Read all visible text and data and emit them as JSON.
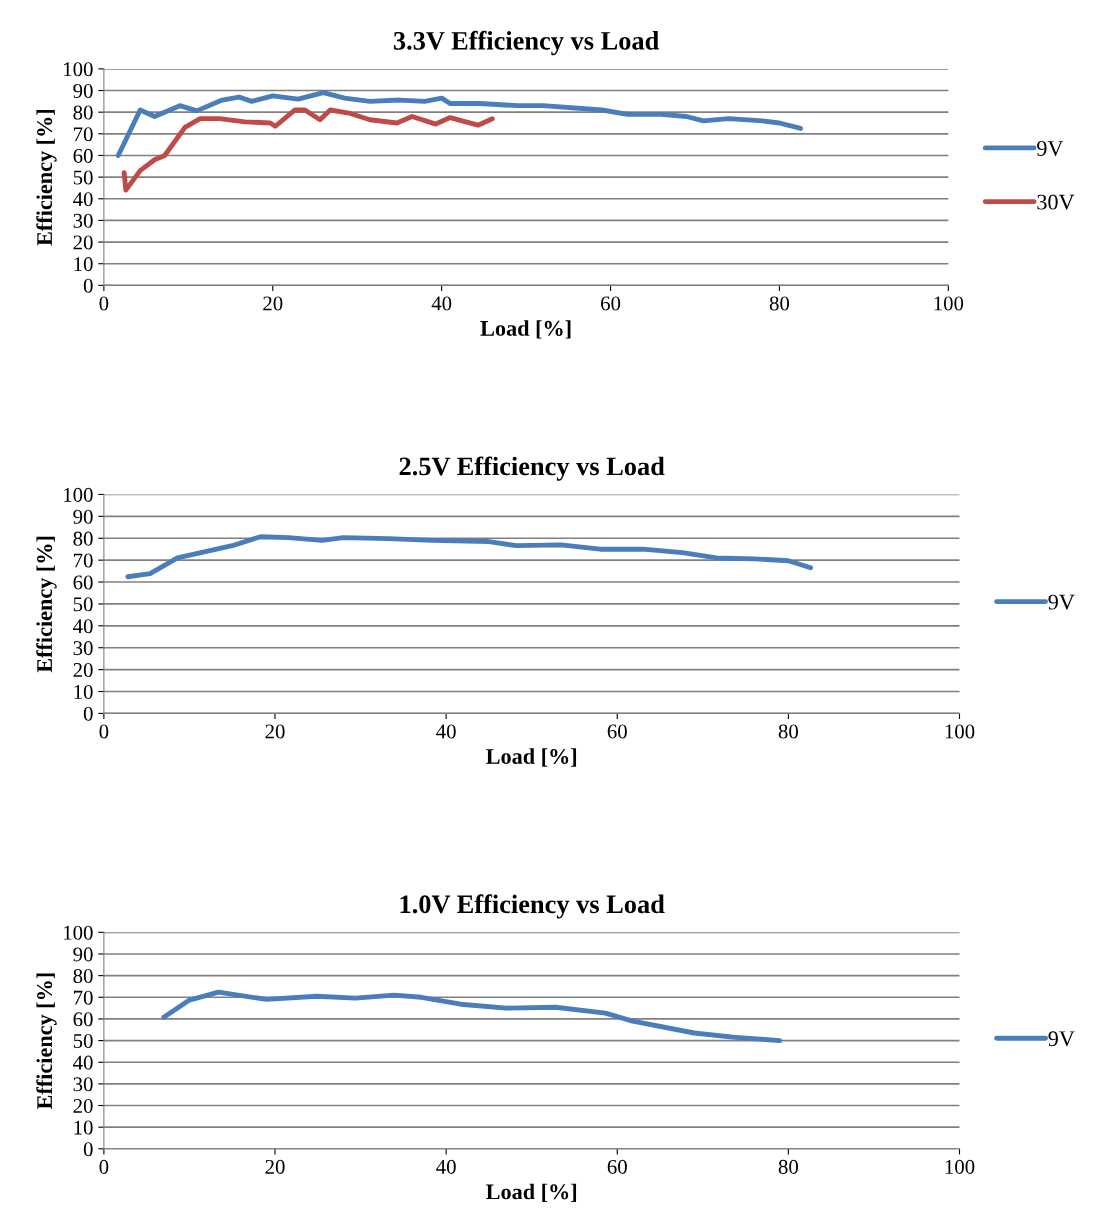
{
  "chart_data": [
    {
      "type": "line",
      "title": "3.3V Efficiency vs Load",
      "xlabel": "Load [%]",
      "ylabel": "Efficiency [%]",
      "xlim": [
        0,
        100
      ],
      "xticks": [
        0,
        20,
        40,
        60,
        80,
        100
      ],
      "ylim": [
        0,
        100
      ],
      "yticks": [
        0,
        10,
        20,
        30,
        40,
        50,
        60,
        70,
        80,
        90,
        100
      ],
      "grid": "y",
      "legend": "right",
      "line_style": "solid",
      "marker": "none",
      "series": [
        {
          "name": "9V",
          "color": "#4a7ebb",
          "x": [
            1.7,
            4.3,
            6,
            9,
            11,
            14,
            16,
            17.5,
            20,
            23,
            26,
            28.5,
            31.5,
            35,
            38,
            40,
            41,
            44.5,
            49,
            52,
            59,
            62,
            66,
            69,
            71,
            74,
            78,
            80,
            82.5
          ],
          "values": [
            60,
            81,
            78,
            83,
            80.6,
            85.6,
            87,
            85,
            87.5,
            86,
            89,
            86.5,
            85,
            85.6,
            85,
            86.5,
            84,
            84,
            83,
            83,
            81,
            79,
            79,
            78,
            76,
            77,
            76,
            75,
            72.5
          ]
        },
        {
          "name": "30V",
          "color": "#be4b48",
          "x": [
            2.4,
            2.6,
            4.3,
            6,
            7.2,
            9.6,
            11.4,
            13.7,
            16.7,
            19.7,
            20.3,
            22.6,
            23.8,
            25.6,
            26.8,
            29,
            31.5,
            34.7,
            36.5,
            39.3,
            41,
            44.3,
            46
          ],
          "values": [
            52,
            44,
            53,
            58,
            60,
            73,
            77,
            77,
            75.5,
            75,
            73.5,
            81,
            81,
            76.5,
            81,
            79.6,
            76.5,
            75,
            78,
            74.5,
            77.5,
            74,
            77
          ]
        }
      ]
    },
    {
      "type": "line",
      "title": "2.5V Efficiency vs Load",
      "xlabel": "Load [%]",
      "ylabel": "Efficiency [%]",
      "xlim": [
        0,
        100
      ],
      "xticks": [
        0,
        20,
        40,
        60,
        80,
        100
      ],
      "ylim": [
        0,
        100
      ],
      "yticks": [
        0,
        10,
        20,
        30,
        40,
        50,
        60,
        70,
        80,
        90,
        100
      ],
      "grid": "y",
      "legend": "right",
      "line_style": "solid",
      "marker": "none",
      "series": [
        {
          "name": "9V",
          "color": "#4a7ebb",
          "x": [
            2.8,
            5.4,
            8.6,
            15,
            18.3,
            21.6,
            25.5,
            28,
            33.3,
            38.4,
            45,
            48.2,
            53.4,
            58,
            63,
            67.6,
            71.6,
            76,
            80,
            82.6
          ],
          "values": [
            62.4,
            63.8,
            71,
            76.6,
            80.7,
            80.3,
            79,
            80.3,
            79.8,
            79,
            78.5,
            76.6,
            77,
            75,
            75,
            73.4,
            71,
            70.6,
            69.7,
            66.5
          ]
        }
      ]
    },
    {
      "type": "line",
      "title": "1.0V Efficiency vs Load",
      "xlabel": "Load [%]",
      "ylabel": "Efficiency [%]",
      "xlim": [
        0,
        100
      ],
      "xticks": [
        0,
        20,
        40,
        60,
        80,
        100
      ],
      "ylim": [
        0,
        100
      ],
      "yticks": [
        0,
        10,
        20,
        30,
        40,
        50,
        60,
        70,
        80,
        90,
        100
      ],
      "grid": "y",
      "legend": "right",
      "line_style": "solid",
      "marker": "none",
      "series": [
        {
          "name": "9V",
          "color": "#4a7ebb",
          "x": [
            7,
            10,
            13.4,
            19,
            24.9,
            29.4,
            33.9,
            37.1,
            41.7,
            47,
            52.8,
            58.6,
            61.8,
            69,
            73.5,
            79
          ],
          "values": [
            60.8,
            68.7,
            72.4,
            69,
            70.5,
            69.6,
            71,
            70,
            66.8,
            65,
            65.4,
            62.7,
            59,
            53.5,
            51.6,
            50
          ]
        }
      ]
    }
  ]
}
